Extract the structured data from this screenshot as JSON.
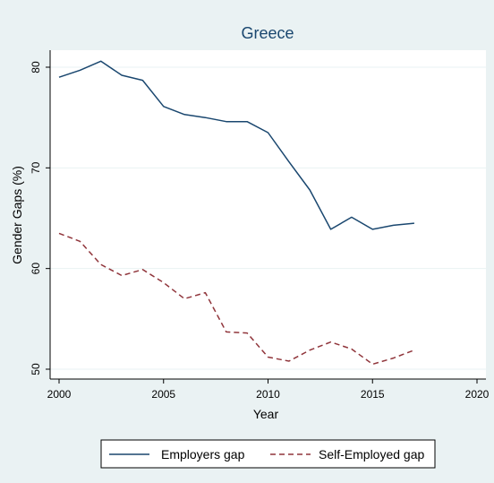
{
  "chart_data": {
    "type": "line",
    "title": "Greece",
    "xlabel": "Year",
    "ylabel": "Gender Gaps (%)",
    "xlim": [
      2000,
      2020
    ],
    "ylim": [
      50,
      80
    ],
    "x_ticks": [
      "2000",
      "2005",
      "2010",
      "2015",
      "2020"
    ],
    "y_ticks": [
      "50",
      "60",
      "70",
      "80"
    ],
    "grid": true,
    "legend_position": "bottom",
    "x": [
      2000,
      2001,
      2002,
      2003,
      2004,
      2005,
      2006,
      2007,
      2008,
      2009,
      2010,
      2011,
      2012,
      2013,
      2014,
      2015,
      2016,
      2017
    ],
    "series": [
      {
        "name": "Employers gap",
        "color": "#1a476f",
        "dash": "solid",
        "values": [
          79.0,
          79.7,
          80.6,
          79.2,
          78.7,
          76.1,
          75.3,
          75.0,
          74.6,
          74.6,
          73.5,
          70.6,
          67.8,
          63.9,
          65.1,
          63.9,
          64.3,
          64.5
        ]
      },
      {
        "name": "Self-Employed gap",
        "color": "#90353b",
        "dash": "dashed",
        "values": [
          63.5,
          62.7,
          60.4,
          59.3,
          59.9,
          58.6,
          57.0,
          57.6,
          53.7,
          53.6,
          51.2,
          50.8,
          51.9,
          52.7,
          52.0,
          50.5,
          51.1,
          51.9
        ]
      }
    ]
  }
}
